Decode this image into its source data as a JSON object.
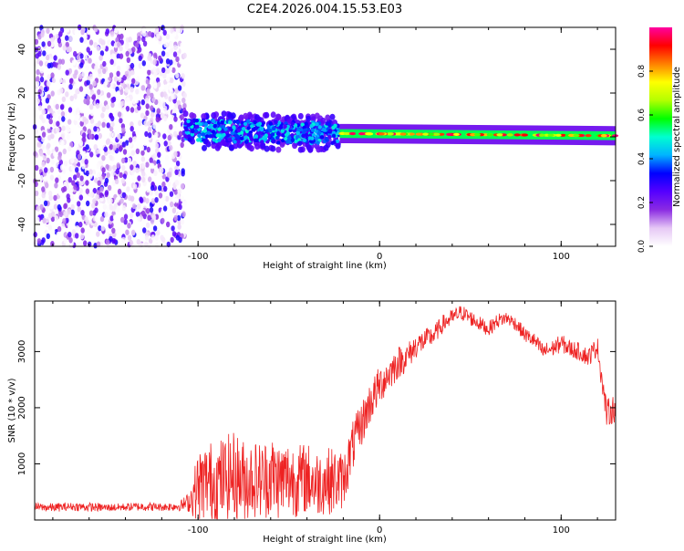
{
  "title": "C2E4.2026.004.15.53.E03",
  "chart_data": [
    {
      "type": "heatmap",
      "xlabel": "Height of straight line (km)",
      "ylabel": "Frequency (Hz)",
      "xlim": [
        -190,
        130
      ],
      "ylim": [
        -50,
        50
      ],
      "xticks": [
        -100,
        0,
        100
      ],
      "yticks": [
        -40,
        -20,
        0,
        20,
        40
      ],
      "colorbar": {
        "label": "Normalized spectral amplitude",
        "range": [
          0,
          1
        ],
        "ticks": [
          "0.0",
          "0.2",
          "0.4",
          "0.6",
          "0.8"
        ],
        "tick_values": [
          0.0,
          0.2,
          0.4,
          0.6,
          0.8
        ],
        "colors": [
          "#ffffff",
          "#e6c8f5",
          "#8a2be2",
          "#5500ff",
          "#0000ff",
          "#00b4ff",
          "#00ffd0",
          "#00ff00",
          "#b4ff00",
          "#ffff00",
          "#ff8000",
          "#ff0000",
          "#ff00a0"
        ]
      },
      "regions": [
        {
          "name": "noise",
          "x": [
            -190,
            -107
          ],
          "freq_range": [
            -50,
            50
          ],
          "amplitude": 0.1
        },
        {
          "name": "scattered-signal",
          "x": [
            -107,
            -22
          ],
          "freq_center": 3.0,
          "freq_end": 1.5,
          "half_width": 6,
          "amplitude": 0.35
        },
        {
          "name": "strong-line",
          "x": [
            -22,
            130
          ],
          "freq_center": 1.5,
          "freq_end": 0.5,
          "half_width": 2,
          "amplitude": 0.95
        }
      ]
    },
    {
      "type": "line",
      "xlabel": "Height of straight line (km)",
      "ylabel": "SNR (10 * v/v)",
      "xlim": [
        -190,
        130
      ],
      "ylim": [
        0,
        3900
      ],
      "xticks": [
        -100,
        0,
        100
      ],
      "yticks": [
        1000,
        2000,
        3000
      ],
      "color": "#ee2222",
      "x": [
        -190,
        -180,
        -170,
        -160,
        -150,
        -140,
        -130,
        -120,
        -110,
        -105,
        -100,
        -95,
        -90,
        -85,
        -80,
        -75,
        -70,
        -65,
        -60,
        -55,
        -50,
        -45,
        -40,
        -35,
        -30,
        -25,
        -20,
        -15,
        -10,
        -5,
        0,
        5,
        10,
        15,
        20,
        25,
        30,
        35,
        40,
        45,
        50,
        55,
        60,
        65,
        70,
        75,
        80,
        85,
        90,
        95,
        100,
        105,
        110,
        115,
        120,
        125,
        130
      ],
      "y": [
        230,
        220,
        240,
        230,
        220,
        230,
        240,
        230,
        250,
        320,
        600,
        700,
        650,
        750,
        800,
        700,
        750,
        700,
        800,
        700,
        750,
        700,
        750,
        650,
        700,
        700,
        700,
        1300,
        1700,
        2100,
        2400,
        2600,
        2800,
        2900,
        3100,
        3200,
        3300,
        3500,
        3600,
        3700,
        3600,
        3500,
        3400,
        3550,
        3600,
        3500,
        3300,
        3200,
        3000,
        3050,
        3150,
        3050,
        3000,
        2900,
        3100,
        1900,
        2000
      ],
      "noise": [
        70,
        80,
        70,
        80,
        70,
        70,
        80,
        70,
        90,
        180,
        650,
        700,
        800,
        750,
        800,
        750,
        700,
        700,
        750,
        700,
        700,
        650,
        650,
        600,
        600,
        600,
        500,
        450,
        400,
        380,
        350,
        320,
        300,
        250,
        220,
        200,
        180,
        160,
        150,
        140,
        140,
        130,
        130,
        130,
        120,
        120,
        130,
        140,
        150,
        150,
        160,
        160,
        160,
        170,
        180,
        250,
        250
      ]
    }
  ]
}
